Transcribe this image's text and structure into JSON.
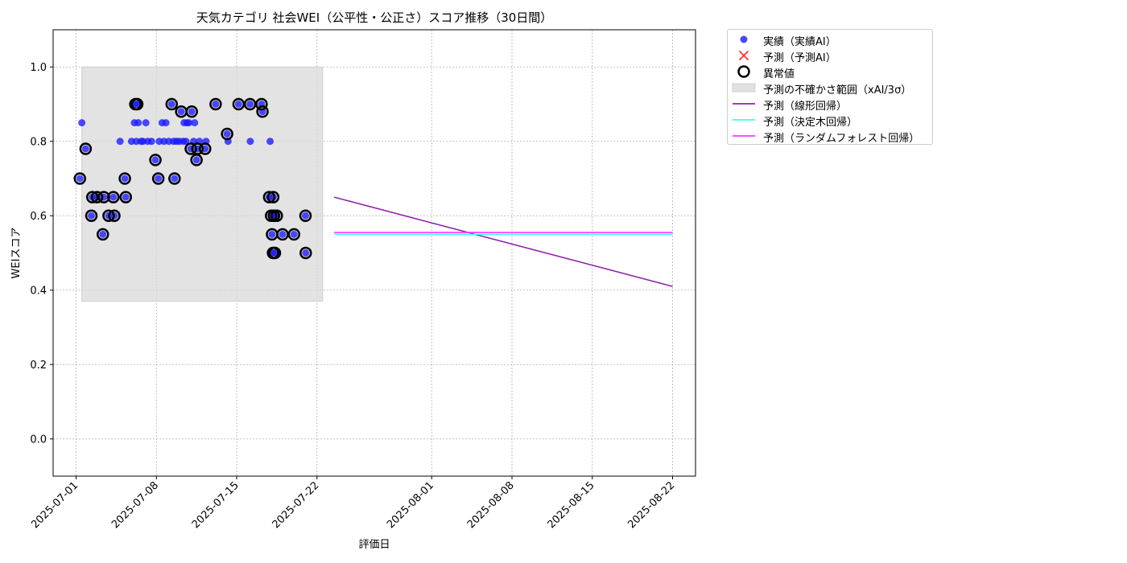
{
  "chart_data": {
    "type": "scatter",
    "title": "天気カテゴリ 社会WEI（公平性・公正さ）スコア推移（30日間）",
    "xlabel": "評価日",
    "ylabel": "WEIスコア",
    "xlim": [
      "2025-06-29",
      "2025-08-24"
    ],
    "ylim": [
      -0.1,
      1.1
    ],
    "yticks": [
      "0.0",
      "0.2",
      "0.4",
      "0.6",
      "0.8",
      "1.0"
    ],
    "xticks": [
      "2025-07-01",
      "2025-07-08",
      "2025-07-15",
      "2025-07-22",
      "2025-08-01",
      "2025-08-08",
      "2025-08-15",
      "2025-08-22"
    ],
    "grid": true,
    "legend_position": "outside-right-top",
    "colors": {
      "actual": "#1a1aff",
      "forecast_ai": "#ff3333",
      "outlier": "#000000",
      "band": "#d9d9d9",
      "linear": "#8e24aa",
      "tree": "#33ffff",
      "forest": "#ff33ff"
    },
    "series": [
      {
        "name": "実績（実績AI）",
        "points": [
          [
            "2025-07-01 08:00",
            0.7
          ],
          [
            "2025-07-01 12:00",
            0.85
          ],
          [
            "2025-07-01 20:00",
            0.78
          ],
          [
            "2025-07-02 08:00",
            0.6
          ],
          [
            "2025-07-02 10:00",
            0.65
          ],
          [
            "2025-07-02 20:00",
            0.65
          ],
          [
            "2025-07-03 08:00",
            0.55
          ],
          [
            "2025-07-03 10:00",
            0.65
          ],
          [
            "2025-07-03 20:00",
            0.6
          ],
          [
            "2025-07-04 06:00",
            0.65
          ],
          [
            "2025-07-04 08:00",
            0.6
          ],
          [
            "2025-07-04 20:00",
            0.8
          ],
          [
            "2025-07-05 06:00",
            0.7
          ],
          [
            "2025-07-05 08:00",
            0.65
          ],
          [
            "2025-07-05 20:00",
            0.8
          ],
          [
            "2025-07-06 02:00",
            0.85
          ],
          [
            "2025-07-06 04:00",
            0.9
          ],
          [
            "2025-07-06 06:00",
            0.8
          ],
          [
            "2025-07-06 08:00",
            0.9
          ],
          [
            "2025-07-06 10:00",
            0.85
          ],
          [
            "2025-07-06 16:00",
            0.8
          ],
          [
            "2025-07-06 20:00",
            0.8
          ],
          [
            "2025-07-07 02:00",
            0.85
          ],
          [
            "2025-07-07 06:00",
            0.8
          ],
          [
            "2025-07-07 14:00",
            0.8
          ],
          [
            "2025-07-07 22:00",
            0.75
          ],
          [
            "2025-07-08 04:00",
            0.7
          ],
          [
            "2025-07-08 06:00",
            0.8
          ],
          [
            "2025-07-08 12:00",
            0.85
          ],
          [
            "2025-07-08 16:00",
            0.8
          ],
          [
            "2025-07-08 20:00",
            0.85
          ],
          [
            "2025-07-09 02:00",
            0.8
          ],
          [
            "2025-07-09 08:00",
            0.9
          ],
          [
            "2025-07-09 12:00",
            0.8
          ],
          [
            "2025-07-09 14:00",
            0.7
          ],
          [
            "2025-07-09 18:00",
            0.8
          ],
          [
            "2025-07-10 00:00",
            0.8
          ],
          [
            "2025-07-10 04:00",
            0.88
          ],
          [
            "2025-07-10 08:00",
            0.8
          ],
          [
            "2025-07-10 10:00",
            0.85
          ],
          [
            "2025-07-10 14:00",
            0.8
          ],
          [
            "2025-07-10 16:00",
            0.85
          ],
          [
            "2025-07-10 20:00",
            0.85
          ],
          [
            "2025-07-11 00:00",
            0.78
          ],
          [
            "2025-07-11 02:00",
            0.88
          ],
          [
            "2025-07-11 06:00",
            0.8
          ],
          [
            "2025-07-11 08:00",
            0.85
          ],
          [
            "2025-07-11 12:00",
            0.75
          ],
          [
            "2025-07-11 14:00",
            0.78
          ],
          [
            "2025-07-11 18:00",
            0.8
          ],
          [
            "2025-07-12 06:00",
            0.78
          ],
          [
            "2025-07-12 08:00",
            0.8
          ],
          [
            "2025-07-13 04:00",
            0.9
          ],
          [
            "2025-07-14 04:00",
            0.82
          ],
          [
            "2025-07-14 06:00",
            0.8
          ],
          [
            "2025-07-15 04:00",
            0.9
          ],
          [
            "2025-07-16 04:00",
            0.9
          ],
          [
            "2025-07-16 04:30",
            0.8
          ],
          [
            "2025-07-17 04:00",
            0.9
          ],
          [
            "2025-07-17 06:00",
            0.88
          ],
          [
            "2025-07-17 20:00",
            0.65
          ],
          [
            "2025-07-17 22:00",
            0.8
          ],
          [
            "2025-07-18 00:00",
            0.6
          ],
          [
            "2025-07-18 02:00",
            0.55
          ],
          [
            "2025-07-18 04:00",
            0.5
          ],
          [
            "2025-07-18 04:30",
            0.65
          ],
          [
            "2025-07-18 06:00",
            0.6
          ],
          [
            "2025-07-18 08:00",
            0.5
          ],
          [
            "2025-07-18 12:00",
            0.6
          ],
          [
            "2025-07-19 00:00",
            0.55
          ],
          [
            "2025-07-20 00:00",
            0.55
          ],
          [
            "2025-07-21 00:00",
            0.6
          ],
          [
            "2025-07-21 00:30",
            0.5
          ]
        ]
      },
      {
        "name": "予測（予測AI）",
        "points": []
      },
      {
        "name": "異常値",
        "points": [
          [
            "2025-07-01 08:00",
            0.7
          ],
          [
            "2025-07-01 20:00",
            0.78
          ],
          [
            "2025-07-02 08:00",
            0.6
          ],
          [
            "2025-07-02 10:00",
            0.65
          ],
          [
            "2025-07-02 20:00",
            0.65
          ],
          [
            "2025-07-03 08:00",
            0.55
          ],
          [
            "2025-07-03 10:00",
            0.65
          ],
          [
            "2025-07-03 20:00",
            0.6
          ],
          [
            "2025-07-04 06:00",
            0.65
          ],
          [
            "2025-07-04 08:00",
            0.6
          ],
          [
            "2025-07-05 06:00",
            0.7
          ],
          [
            "2025-07-05 08:00",
            0.65
          ],
          [
            "2025-07-06 04:00",
            0.9
          ],
          [
            "2025-07-06 08:00",
            0.9
          ],
          [
            "2025-07-07 22:00",
            0.75
          ],
          [
            "2025-07-08 04:00",
            0.7
          ],
          [
            "2025-07-09 08:00",
            0.9
          ],
          [
            "2025-07-09 14:00",
            0.7
          ],
          [
            "2025-07-10 04:00",
            0.88
          ],
          [
            "2025-07-11 00:00",
            0.78
          ],
          [
            "2025-07-11 02:00",
            0.88
          ],
          [
            "2025-07-11 12:00",
            0.75
          ],
          [
            "2025-07-11 14:00",
            0.78
          ],
          [
            "2025-07-12 06:00",
            0.78
          ],
          [
            "2025-07-13 04:00",
            0.9
          ],
          [
            "2025-07-14 04:00",
            0.82
          ],
          [
            "2025-07-15 04:00",
            0.9
          ],
          [
            "2025-07-16 04:00",
            0.9
          ],
          [
            "2025-07-17 04:00",
            0.9
          ],
          [
            "2025-07-17 06:00",
            0.88
          ],
          [
            "2025-07-17 20:00",
            0.65
          ],
          [
            "2025-07-18 00:00",
            0.6
          ],
          [
            "2025-07-18 02:00",
            0.55
          ],
          [
            "2025-07-18 04:00",
            0.5
          ],
          [
            "2025-07-18 04:30",
            0.65
          ],
          [
            "2025-07-18 06:00",
            0.6
          ],
          [
            "2025-07-18 08:00",
            0.5
          ],
          [
            "2025-07-18 12:00",
            0.6
          ],
          [
            "2025-07-19 00:00",
            0.55
          ],
          [
            "2025-07-20 00:00",
            0.55
          ],
          [
            "2025-07-21 00:00",
            0.6
          ],
          [
            "2025-07-21 00:30",
            0.5
          ]
        ]
      },
      {
        "name": "予測の不確かさ範囲（xAI/3σ）",
        "x": [
          "2025-07-01 12:00",
          "2025-07-22 12:00"
        ],
        "y_low": 0.37,
        "y_high": 1.0
      },
      {
        "name": "予測（線形回帰）",
        "x": [
          "2025-07-23 12:00",
          "2025-08-22 00:00"
        ],
        "values": [
          0.65,
          0.41
        ]
      },
      {
        "name": "予測（決定木回帰）",
        "x": [
          "2025-07-23 12:00",
          "2025-08-22 00:00"
        ],
        "values": [
          0.55,
          0.55
        ]
      },
      {
        "name": "予測（ランダムフォレスト回帰）",
        "x": [
          "2025-07-23 12:00",
          "2025-08-22 00:00"
        ],
        "values": [
          0.555,
          0.555
        ]
      }
    ]
  }
}
